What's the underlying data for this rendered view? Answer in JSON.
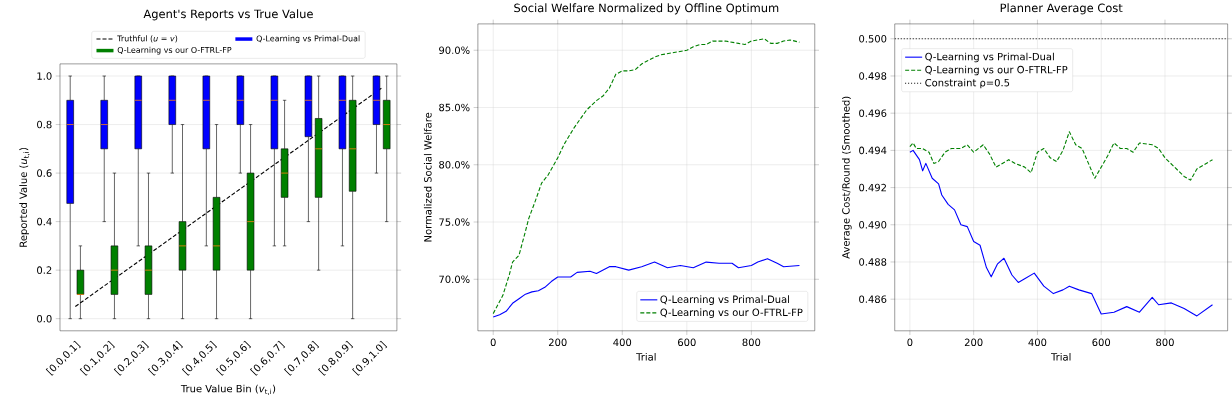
{
  "chart_data": [
    {
      "type": "box",
      "title": "Agent's Reports vs True Value",
      "xlabel": "True Value Bin (*v*$_{t,i}$)",
      "ylabel": "Reported Value (*u*$_{t,i}$)",
      "categories": [
        "[0.0,0.1]",
        "[0.1,0.2]",
        "[0.2,0.3]",
        "[0.3,0.4]",
        "[0.4,0.5]",
        "[0.5,0.6]",
        "[0.6,0.7]",
        "[0.7,0.8]",
        "[0.8,0.9]",
        "[0.9,1.0]"
      ],
      "ylim": [
        -0.05,
        1.05
      ],
      "yticks": [
        {
          "value": 0,
          "label": "0.0"
        },
        {
          "value": 0.2,
          "label": "0.2"
        },
        {
          "value": 0.4,
          "label": "0.4"
        },
        {
          "value": 0.6,
          "label": "0.6"
        },
        {
          "value": 0.8,
          "label": "0.8"
        },
        {
          "value": 1,
          "label": "1.0"
        }
      ],
      "grid": "y",
      "legend": "top",
      "series": [
        {
          "name": "Truthful (*u* = *v*)",
          "type": "line",
          "color": "#000000",
          "line_style": "dashed",
          "values": [
            0.05,
            0.15,
            0.25,
            0.35,
            0.45,
            0.55,
            0.65,
            0.75,
            0.85,
            0.95
          ]
        },
        {
          "name": "Q-Learning vs Primal-Dual",
          "color": "#0000ff",
          "boxes": [
            {
              "low": 0,
              "q1": 0.475,
              "median": 0.8,
              "q3": 0.9,
              "high": 1.0
            },
            {
              "low": 0.4,
              "q1": 0.7,
              "median": 0.8,
              "q3": 0.9,
              "high": 1.0
            },
            {
              "low": 0.3,
              "q1": 0.7,
              "median": 0.9,
              "q3": 1.0,
              "high": 1.0
            },
            {
              "low": 0.6,
              "q1": 0.8,
              "median": 0.9,
              "q3": 1.0,
              "high": 1.0
            },
            {
              "low": 0.3,
              "q1": 0.7,
              "median": 0.9,
              "q3": 1.0,
              "high": 1.0
            },
            {
              "low": 0.6,
              "q1": 0.8,
              "median": 0.9,
              "q3": 1.0,
              "high": 1.0
            },
            {
              "low": 0.3,
              "q1": 0.7,
              "median": 0.9,
              "q3": 1.0,
              "high": 1.0
            },
            {
              "low": 0.4,
              "q1": 0.75,
              "median": 0.9,
              "q3": 1.0,
              "high": 1.0
            },
            {
              "low": 0.3,
              "q1": 0.7,
              "median": 0.9,
              "q3": 1.0,
              "high": 1.0
            },
            {
              "low": 0.6,
              "q1": 0.8,
              "median": 0.9,
              "q3": 1.0,
              "high": 1.0
            }
          ]
        },
        {
          "name": "Q-Learning vs our O-FTRL-FP",
          "color": "#008000",
          "boxes": [
            {
              "low": 0,
              "q1": 0.1,
              "median": 0.1,
              "q3": 0.2,
              "high": 0.3
            },
            {
              "low": 0,
              "q1": 0.1,
              "median": 0.2,
              "q3": 0.3,
              "high": 0.6
            },
            {
              "low": 0,
              "q1": 0.1,
              "median": 0.2,
              "q3": 0.3,
              "high": 0.6
            },
            {
              "low": 0,
              "q1": 0.2,
              "median": 0.3,
              "q3": 0.4,
              "high": 0.8
            },
            {
              "low": 0,
              "q1": 0.2,
              "median": 0.3,
              "q3": 0.5,
              "high": 0.8
            },
            {
              "low": 0,
              "q1": 0.2,
              "median": 0.4,
              "q3": 0.6,
              "high": 0.8
            },
            {
              "low": 0.3,
              "q1": 0.5,
              "median": 0.6,
              "q3": 0.7,
              "high": 0.9
            },
            {
              "low": 0.2,
              "q1": 0.5,
              "median": 0.7,
              "q3": 0.825,
              "high": 1.0
            },
            {
              "low": 0,
              "q1": 0.525,
              "median": 0.7,
              "q3": 0.9,
              "high": 1.0
            },
            {
              "low": 0.4,
              "q1": 0.7,
              "median": 0.8,
              "q3": 0.9,
              "high": 1.0
            }
          ]
        }
      ]
    },
    {
      "type": "line",
      "title": "Social Welfare Normalized by Offline Optimum",
      "xlabel": "Trial",
      "ylabel": "Normalized Social Welfare",
      "xlim": [
        -47.5,
        996.5
      ],
      "xticks": [
        0,
        200,
        400,
        600,
        800
      ],
      "ylim": [
        65.5,
        92.3
      ],
      "yticks": [
        {
          "value": 70,
          "label": "70.0%"
        },
        {
          "value": 75,
          "label": "75.0%"
        },
        {
          "value": 80,
          "label": "80.0%"
        },
        {
          "value": 85,
          "label": "85.0%"
        },
        {
          "value": 90,
          "label": "90.0%"
        }
      ],
      "grid": true,
      "legend": "bottom right",
      "series": [
        {
          "name": "Q-Learning vs Primal-Dual",
          "color": "#0000ff",
          "line_style": "solid",
          "x": [
            0,
            20,
            40,
            60,
            80,
            100,
            120,
            140,
            160,
            180,
            200,
            240,
            260,
            300,
            320,
            340,
            360,
            380,
            420,
            460,
            500,
            540,
            580,
            620,
            660,
            700,
            740,
            760,
            800,
            820,
            850,
            880,
            900,
            949
          ],
          "values": [
            66.7,
            66.9,
            67.2,
            67.9,
            68.3,
            68.7,
            68.9,
            69.0,
            69.3,
            69.8,
            70.2,
            70.2,
            70.6,
            70.7,
            70.5,
            70.8,
            71.1,
            71.1,
            70.8,
            71.1,
            71.5,
            71.0,
            71.2,
            71.0,
            71.5,
            71.4,
            71.4,
            71.0,
            71.2,
            71.5,
            71.8,
            71.4,
            71.1,
            71.2
          ]
        },
        {
          "name": "Q-Learning vs our O-FTRL-FP",
          "color": "#008000",
          "line_style": "dashed",
          "x": [
            0,
            15,
            30,
            50,
            60,
            80,
            100,
            110,
            130,
            150,
            170,
            200,
            220,
            250,
            270,
            290,
            320,
            340,
            360,
            380,
            400,
            420,
            440,
            460,
            480,
            500,
            520,
            560,
            600,
            620,
            640,
            660,
            680,
            720,
            760,
            780,
            800,
            840,
            860,
            880,
            900,
            920,
            949
          ],
          "values": [
            67.0,
            67.8,
            68.6,
            70.4,
            71.5,
            72.1,
            74.2,
            75.3,
            76.8,
            78.4,
            79.1,
            80.6,
            81.8,
            83.2,
            84.0,
            84.8,
            85.6,
            86.0,
            86.7,
            87.9,
            88.2,
            88.2,
            88.3,
            88.8,
            89.1,
            89.4,
            89.6,
            89.8,
            90.0,
            90.3,
            90.5,
            90.5,
            90.8,
            90.8,
            90.6,
            90.5,
            90.8,
            91.0,
            90.6,
            90.6,
            90.8,
            90.9,
            90.7
          ]
        }
      ]
    },
    {
      "type": "line",
      "title": "Planner Average Cost",
      "xlabel": "Trial",
      "ylabel": "Average Cost/Round (Smoothed)",
      "xlim": [
        -47.5,
        996.5
      ],
      "xticks": [
        0,
        200,
        400,
        600,
        800
      ],
      "ylim": [
        0.4843,
        0.5008
      ],
      "yticks": [
        {
          "value": 0.486,
          "label": "0.486"
        },
        {
          "value": 0.488,
          "label": "0.488"
        },
        {
          "value": 0.49,
          "label": "0.490"
        },
        {
          "value": 0.492,
          "label": "0.492"
        },
        {
          "value": 0.494,
          "label": "0.494"
        },
        {
          "value": 0.496,
          "label": "0.496"
        },
        {
          "value": 0.498,
          "label": "0.498"
        },
        {
          "value": 0.5,
          "label": "0.500"
        }
      ],
      "grid": true,
      "legend": "top left",
      "ref_lines": [
        {
          "axis": "y",
          "value": 0.5,
          "label": "Constraint ρ=0.5",
          "color": "#000000",
          "line_style": "dotted"
        }
      ],
      "series": [
        {
          "name": "Q-Learning vs Primal-Dual",
          "color": "#0000ff",
          "line_style": "solid",
          "x": [
            0,
            10,
            30,
            40,
            50,
            70,
            90,
            100,
            120,
            140,
            160,
            180,
            200,
            220,
            240,
            255,
            275,
            295,
            320,
            340,
            360,
            390,
            420,
            450,
            480,
            500,
            530,
            570,
            600,
            640,
            680,
            720,
            760,
            780,
            820,
            860,
            900,
            949
          ],
          "values": [
            0.4939,
            0.494,
            0.4935,
            0.4929,
            0.4933,
            0.4925,
            0.4922,
            0.4916,
            0.4911,
            0.4908,
            0.49,
            0.4899,
            0.4891,
            0.4889,
            0.4877,
            0.4872,
            0.4879,
            0.4882,
            0.4873,
            0.4869,
            0.4871,
            0.4874,
            0.4867,
            0.4863,
            0.4865,
            0.4867,
            0.4865,
            0.4863,
            0.4852,
            0.4853,
            0.4856,
            0.4853,
            0.4861,
            0.4857,
            0.4858,
            0.4855,
            0.4851,
            0.4857
          ]
        },
        {
          "name": "Q-Learning vs our O-FTRL-FP",
          "color": "#008000",
          "line_style": "dashed",
          "x": [
            0,
            10,
            20,
            40,
            60,
            75,
            90,
            110,
            130,
            160,
            180,
            200,
            230,
            250,
            270,
            290,
            310,
            330,
            360,
            380,
            400,
            420,
            440,
            460,
            480,
            500,
            520,
            540,
            560,
            580,
            600,
            620,
            640,
            660,
            680,
            700,
            720,
            760,
            780,
            800,
            830,
            860,
            880,
            900,
            920,
            949
          ],
          "values": [
            0.4942,
            0.4944,
            0.4941,
            0.4941,
            0.4939,
            0.4933,
            0.4934,
            0.4939,
            0.4941,
            0.4941,
            0.4943,
            0.4939,
            0.4943,
            0.4938,
            0.4931,
            0.4933,
            0.4935,
            0.4933,
            0.4931,
            0.4928,
            0.4939,
            0.4941,
            0.4936,
            0.4934,
            0.494,
            0.495,
            0.4943,
            0.4941,
            0.4933,
            0.4925,
            0.4931,
            0.4937,
            0.4944,
            0.4941,
            0.4941,
            0.4939,
            0.4944,
            0.4943,
            0.4941,
            0.4936,
            0.4931,
            0.4926,
            0.4924,
            0.493,
            0.4932,
            0.4935
          ]
        }
      ]
    }
  ]
}
